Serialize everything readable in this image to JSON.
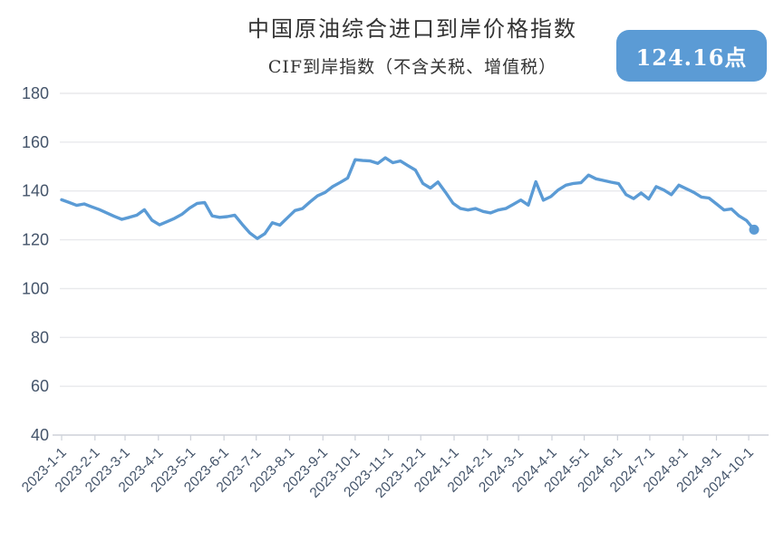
{
  "header": {
    "title": "中国原油综合进口到岸价格指数",
    "subtitle": "CIF到岸指数（不含关税、增值税）",
    "badge": "124.16点"
  },
  "colors": {
    "line": "#5B9BD5",
    "end_marker": "#5B9BD5",
    "badge_bg": "#5B9BD5",
    "badge_text": "#FFFFFF",
    "axis_label": "#44546A",
    "gridline": "#E8E9EC",
    "axis_line": "#CDD1D9",
    "title_text": "#333333"
  },
  "chart_data": {
    "type": "line",
    "title": "中国原油综合进口到岸价格指数",
    "subtitle": "CIF到岸指数（不含关税、增值税）",
    "legend": "none",
    "grid": "horizontal",
    "ylim": [
      40,
      180
    ],
    "yticks": [
      40,
      60,
      80,
      100,
      120,
      140,
      160,
      180
    ],
    "xticks": [
      "2023-1-1",
      "2023-2-1",
      "2023-3-1",
      "2023-4-1",
      "2023-5-1",
      "2023-6-1",
      "2023-7-1",
      "2023-8-1",
      "2023-9-1",
      "2023-10-1",
      "2023-11-1",
      "2023-12-1",
      "2024-1-1",
      "2024-2-1",
      "2024-3-1",
      "2024-4-1",
      "2024-5-1",
      "2024-6-1",
      "2024-7-1",
      "2024-8-1",
      "2024-9-1",
      "2024-10-1"
    ],
    "latest_value": 124.16,
    "latest_label": "124.16点",
    "end_marker": true,
    "x": [
      "2023-1-1",
      "2023-1-8",
      "2023-1-15",
      "2023-1-22",
      "2023-1-29",
      "2023-2-5",
      "2023-2-12",
      "2023-2-19",
      "2023-2-26",
      "2023-3-5",
      "2023-3-12",
      "2023-3-19",
      "2023-3-26",
      "2023-4-2",
      "2023-4-9",
      "2023-4-16",
      "2023-4-23",
      "2023-4-30",
      "2023-5-7",
      "2023-5-14",
      "2023-5-21",
      "2023-5-28",
      "2023-6-4",
      "2023-6-11",
      "2023-6-18",
      "2023-6-25",
      "2023-7-2",
      "2023-7-9",
      "2023-7-16",
      "2023-7-23",
      "2023-7-30",
      "2023-8-6",
      "2023-8-13",
      "2023-8-20",
      "2023-8-27",
      "2023-9-3",
      "2023-9-10",
      "2023-9-17",
      "2023-9-24",
      "2023-10-1",
      "2023-10-8",
      "2023-10-15",
      "2023-10-22",
      "2023-10-29",
      "2023-11-5",
      "2023-11-12",
      "2023-11-19",
      "2023-11-26",
      "2023-12-3",
      "2023-12-10",
      "2023-12-17",
      "2023-12-24",
      "2023-12-31",
      "2024-1-7",
      "2024-1-14",
      "2024-1-21",
      "2024-1-28",
      "2024-2-4",
      "2024-2-11",
      "2024-2-18",
      "2024-2-25",
      "2024-3-3",
      "2024-3-10",
      "2024-3-17",
      "2024-3-24",
      "2024-3-31",
      "2024-4-7",
      "2024-4-14",
      "2024-4-21",
      "2024-4-28",
      "2024-5-5",
      "2024-5-12",
      "2024-5-19",
      "2024-5-26",
      "2024-6-2",
      "2024-6-9",
      "2024-6-16",
      "2024-6-23",
      "2024-6-30",
      "2024-7-7",
      "2024-7-14",
      "2024-7-21",
      "2024-7-28",
      "2024-8-4",
      "2024-8-11",
      "2024-8-18",
      "2024-8-25",
      "2024-9-1",
      "2024-9-8",
      "2024-9-15",
      "2024-9-22",
      "2024-9-29",
      "2024-10-6"
    ],
    "values": [
      136.4,
      135.3,
      134.1,
      134.7,
      133.5,
      132.4,
      131.0,
      129.6,
      128.4,
      129.2,
      130.1,
      132.3,
      128.0,
      126.1,
      127.4,
      128.8,
      130.5,
      133.0,
      134.9,
      135.3,
      129.8,
      129.2,
      129.5,
      130.1,
      126.3,
      122.8,
      120.5,
      122.5,
      127.0,
      126.0,
      129.0,
      132.0,
      132.8,
      135.5,
      138.0,
      139.4,
      141.8,
      143.5,
      145.3,
      152.8,
      152.5,
      152.3,
      151.3,
      153.6,
      151.6,
      152.3,
      150.4,
      148.6,
      143.1,
      141.2,
      143.7,
      139.5,
      135.0,
      132.8,
      132.2,
      132.8,
      131.6,
      131.0,
      132.2,
      132.8,
      134.5,
      136.3,
      134.2,
      143.8,
      136.2,
      137.7,
      140.5,
      142.4,
      143.1,
      143.4,
      146.5,
      145.0,
      144.3,
      143.6,
      143.0,
      138.5,
      136.9,
      139.2,
      136.7,
      141.8,
      140.4,
      138.5,
      142.4,
      140.9,
      139.4,
      137.5,
      137.1,
      134.7,
      132.2,
      132.6,
      129.8,
      127.9,
      124.16
    ]
  }
}
